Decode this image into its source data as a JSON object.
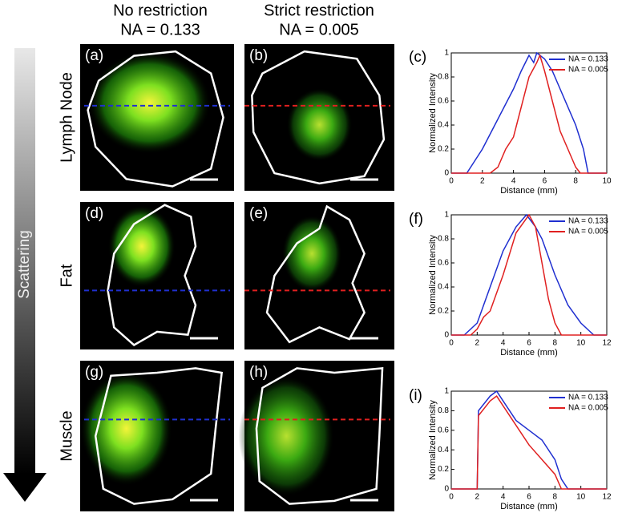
{
  "header": {
    "columns": [
      {
        "title": "No restriction",
        "subtitle": "NA = 0.133"
      },
      {
        "title": "Strict restriction",
        "subtitle": "NA = 0.005"
      }
    ]
  },
  "arrow_label": "Scattering",
  "rows": [
    {
      "label": "Lymph Node",
      "panels": [
        "(a)",
        "(b)"
      ]
    },
    {
      "label": "Fat",
      "panels": [
        "(d)",
        "(e)"
      ]
    },
    {
      "label": "Muscle",
      "panels": [
        "(g)",
        "(h)"
      ]
    }
  ],
  "chart_data": [
    {
      "type": "line",
      "label": "(c)",
      "xlabel": "Distance (mm)",
      "ylabel": "Normalized Intensity",
      "xlim": [
        0,
        10
      ],
      "ylim": [
        0,
        1
      ],
      "xticks": [
        0,
        2,
        4,
        6,
        8,
        10
      ],
      "yticks": [
        0,
        0.2,
        0.4,
        0.6,
        0.8,
        1
      ],
      "legend": "upper right",
      "series": [
        {
          "name": "NA = 0.133",
          "color": "#1f2fd0",
          "x": [
            0,
            1,
            1.5,
            2,
            3,
            4,
            4.5,
            5,
            5.3,
            5.5,
            6,
            6.5,
            7,
            8,
            8.5,
            8.8,
            10
          ],
          "values": [
            0,
            0,
            0.1,
            0.2,
            0.45,
            0.7,
            0.85,
            0.98,
            0.92,
            1,
            0.95,
            0.85,
            0.7,
            0.4,
            0.2,
            0,
            0
          ]
        },
        {
          "name": "NA = 0.005",
          "color": "#e02020",
          "x": [
            0,
            2.5,
            3,
            3.5,
            4,
            4.5,
            5,
            5.5,
            5.7,
            6,
            6.5,
            7,
            7.5,
            8,
            8.3,
            10
          ],
          "values": [
            0,
            0,
            0.05,
            0.2,
            0.3,
            0.55,
            0.8,
            0.92,
            0.98,
            0.85,
            0.6,
            0.35,
            0.2,
            0.05,
            0,
            0
          ]
        }
      ]
    },
    {
      "type": "line",
      "label": "(f)",
      "xlabel": "Distance (mm)",
      "ylabel": "Normalized Intensity",
      "xlim": [
        0,
        12
      ],
      "ylim": [
        0,
        1
      ],
      "xticks": [
        0,
        2,
        4,
        6,
        8,
        10,
        12
      ],
      "yticks": [
        0,
        0.2,
        0.4,
        0.6,
        0.8,
        1
      ],
      "legend": "upper right",
      "series": [
        {
          "name": "NA = 0.133",
          "color": "#1f2fd0",
          "x": [
            0,
            1,
            2,
            3,
            4,
            5,
            5.8,
            6.5,
            7,
            8,
            9,
            10,
            11,
            12
          ],
          "values": [
            0,
            0,
            0.1,
            0.4,
            0.7,
            0.9,
            1,
            0.9,
            0.8,
            0.5,
            0.25,
            0.1,
            0,
            0
          ]
        },
        {
          "name": "NA = 0.005",
          "color": "#e02020",
          "x": [
            0,
            1.5,
            2,
            2.5,
            3,
            3.5,
            4,
            5,
            6,
            6.5,
            7,
            7.5,
            8,
            8.5,
            12
          ],
          "values": [
            0,
            0,
            0.05,
            0.15,
            0.2,
            0.35,
            0.5,
            0.85,
            1,
            0.9,
            0.6,
            0.3,
            0.1,
            0,
            0
          ]
        }
      ]
    },
    {
      "type": "line",
      "label": "(i)",
      "xlabel": "Distance (mm)",
      "ylabel": "Normalized Intensity",
      "xlim": [
        0,
        12
      ],
      "ylim": [
        0,
        1
      ],
      "xticks": [
        0,
        2,
        4,
        6,
        8,
        10,
        12
      ],
      "yticks": [
        0,
        0.2,
        0.4,
        0.6,
        0.8,
        1
      ],
      "legend": "upper right",
      "series": [
        {
          "name": "NA = 0.133",
          "color": "#1f2fd0",
          "x": [
            0,
            2,
            2.1,
            3,
            3.5,
            4,
            5,
            6,
            7,
            8,
            8.5,
            9,
            12
          ],
          "values": [
            0,
            0,
            0.8,
            0.95,
            1,
            0.9,
            0.7,
            0.6,
            0.5,
            0.3,
            0.1,
            0,
            0
          ]
        },
        {
          "name": "NA = 0.005",
          "color": "#e02020",
          "x": [
            0,
            2,
            2.1,
            3,
            3.5,
            4,
            5,
            6,
            7,
            8,
            8.5,
            12
          ],
          "values": [
            0,
            0,
            0.75,
            0.9,
            0.95,
            0.85,
            0.65,
            0.45,
            0.3,
            0.15,
            0,
            0
          ]
        }
      ]
    }
  ]
}
